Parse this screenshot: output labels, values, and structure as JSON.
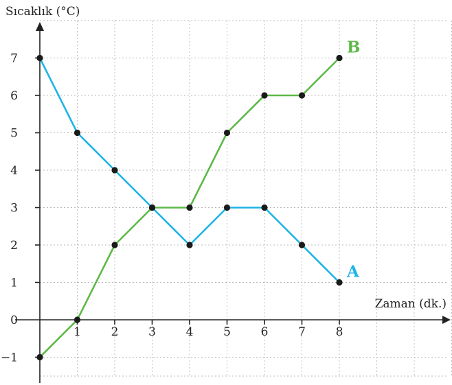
{
  "chart_data": {
    "type": "line",
    "title": "",
    "xlabel": "Zaman (dk.)",
    "ylabel": "Sıcaklık (°C)",
    "x_ticks": [
      "1",
      "2",
      "3",
      "4",
      "5",
      "6",
      "7",
      "8"
    ],
    "y_ticks": [
      "−1",
      "0",
      "1",
      "2",
      "3",
      "4",
      "5",
      "6",
      "7"
    ],
    "xlim": [
      0,
      11
    ],
    "ylim": [
      -1,
      8
    ],
    "grid": true,
    "series": [
      {
        "name": "A",
        "color": "#1eb4e6",
        "x": [
          0,
          1,
          2,
          3,
          4,
          5,
          6,
          7,
          8
        ],
        "y": [
          7,
          5,
          4,
          3,
          2,
          3,
          3,
          2,
          1
        ]
      },
      {
        "name": "B",
        "color": "#5cb947",
        "x": [
          0,
          1,
          2,
          3,
          4,
          5,
          6,
          7,
          8
        ],
        "y": [
          -1,
          0,
          2,
          3,
          3,
          5,
          6,
          6,
          7
        ]
      }
    ]
  }
}
